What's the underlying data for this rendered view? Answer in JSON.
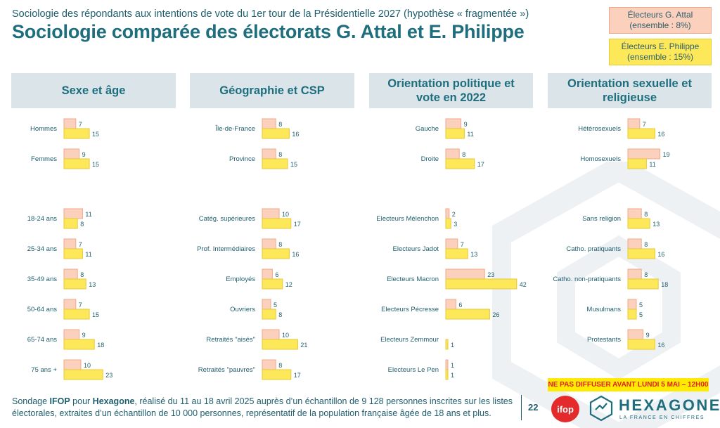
{
  "header": {
    "subtitle": "Sociologie des répondants aux intentions de vote du 1er tour de la Présidentielle 2027 (hypothèse « fragmentée »)",
    "title": "Sociologie comparée des électorats G. Attal et E. Philippe"
  },
  "legend": {
    "attal_line1": "Électeurs G. Attal",
    "attal_line2": "(ensemble : 8%)",
    "philippe_line1": "Électeurs E. Philippe",
    "philippe_line2": "(ensemble : 15%)"
  },
  "panels": {
    "p1": "Sexe et âge",
    "p2": "Géographie et CSP",
    "p3": "Orientation politique et vote en 2022",
    "p4": "Orientation sexuelle et religieuse"
  },
  "footer": {
    "sondage": "Sondage ",
    "ifop": "IFOP",
    "pour": " pour ",
    "hexagone": "Hexagone",
    "rest": ", réalisé du 11 au 18 avril 2025 auprès d’un échantillon de 9 128 personnes inscrites sur les listes électorales, extraites d’un échantillon de 10 000 personnes, représentatif de la population française âgée de 18 ans et plus.",
    "warning": "NE PAS DIFFUSER AVANT LUNDI 5 MAI – 12H00",
    "page": "22",
    "ifop_logo": "ifop",
    "brand": "HEXAGONE",
    "tagline": "LA FRANCE EN CHIFFRES"
  },
  "colors": {
    "attal_fill": "#fbd0bd",
    "attal_stroke": "#f0a98a",
    "philippe_fill": "#fde85a",
    "philippe_stroke": "#e7c93a",
    "header_bg": "#dbe4e8",
    "text": "#1f5e6d"
  },
  "chart_data": [
    {
      "type": "bar",
      "panel": "Sexe et âge",
      "series_names": [
        "Électeurs G. Attal",
        "Électeurs E. Philippe"
      ],
      "groups": [
        [
          {
            "label": "Hommes",
            "attal": 7,
            "philippe": 15
          },
          {
            "label": "Femmes",
            "attal": 9,
            "philippe": 15
          }
        ],
        [
          {
            "label": "18-24 ans",
            "attal": 11,
            "philippe": 8
          },
          {
            "label": "25-34 ans",
            "attal": 7,
            "philippe": 11
          },
          {
            "label": "35-49 ans",
            "attal": 8,
            "philippe": 13
          },
          {
            "label": "50-64 ans",
            "attal": 7,
            "philippe": 15
          },
          {
            "label": "65-74 ans",
            "attal": 9,
            "philippe": 18
          },
          {
            "label": "75 ans +",
            "attal": 10,
            "philippe": 23
          }
        ]
      ]
    },
    {
      "type": "bar",
      "panel": "Géographie et CSP",
      "series_names": [
        "Électeurs G. Attal",
        "Électeurs E. Philippe"
      ],
      "groups": [
        [
          {
            "label": "Île-de-France",
            "attal": 8,
            "philippe": 16
          },
          {
            "label": "Province",
            "attal": 8,
            "philippe": 15
          }
        ],
        [
          {
            "label": "Catég. supérieures",
            "attal": 10,
            "philippe": 17
          },
          {
            "label": "Prof. Intermédiaires",
            "attal": 8,
            "philippe": 16
          },
          {
            "label": "Employés",
            "attal": 6,
            "philippe": 12
          },
          {
            "label": "Ouvriers",
            "attal": 5,
            "philippe": 8
          },
          {
            "label": "Retraités \"aisés\"",
            "attal": 10,
            "philippe": 21
          },
          {
            "label": "Retraités \"pauvres\"",
            "attal": 8,
            "philippe": 17
          }
        ]
      ]
    },
    {
      "type": "bar",
      "panel": "Orientation politique et vote en 2022",
      "series_names": [
        "Électeurs G. Attal",
        "Électeurs E. Philippe"
      ],
      "groups": [
        [
          {
            "label": "Gauche",
            "attal": 9,
            "philippe": 11
          },
          {
            "label": "Droite",
            "attal": 8,
            "philippe": 17
          }
        ],
        [
          {
            "label": "Electeurs Mélenchon",
            "attal": 2,
            "philippe": 3
          },
          {
            "label": "Electeurs Jadot",
            "attal": 7,
            "philippe": 13
          },
          {
            "label": "Electeurs Macron",
            "attal": 23,
            "philippe": 42
          },
          {
            "label": "Electeurs Pécresse",
            "attal": 6,
            "philippe": 26
          },
          {
            "label": "Electeurs Zemmour",
            "attal": null,
            "philippe": 1
          },
          {
            "label": "Electeurs Le Pen",
            "attal": 1,
            "philippe": 1
          }
        ]
      ]
    },
    {
      "type": "bar",
      "panel": "Orientation sexuelle et religieuse",
      "series_names": [
        "Électeurs G. Attal",
        "Électeurs E. Philippe"
      ],
      "groups": [
        [
          {
            "label": "Hétérosexuels",
            "attal": 7,
            "philippe": 16
          },
          {
            "label": "Homosexuels",
            "attal": 19,
            "philippe": 11
          }
        ],
        [
          {
            "label": "Sans religion",
            "attal": 8,
            "philippe": 13
          },
          {
            "label": "Catho. pratiquants",
            "attal": 8,
            "philippe": 16
          },
          {
            "label": "Catho. non-pratiquants",
            "attal": 8,
            "philippe": 18
          },
          {
            "label": "Musulmans",
            "attal": 5,
            "philippe": 5
          },
          {
            "label": "Protestants",
            "attal": 9,
            "philippe": 16
          }
        ]
      ]
    }
  ]
}
